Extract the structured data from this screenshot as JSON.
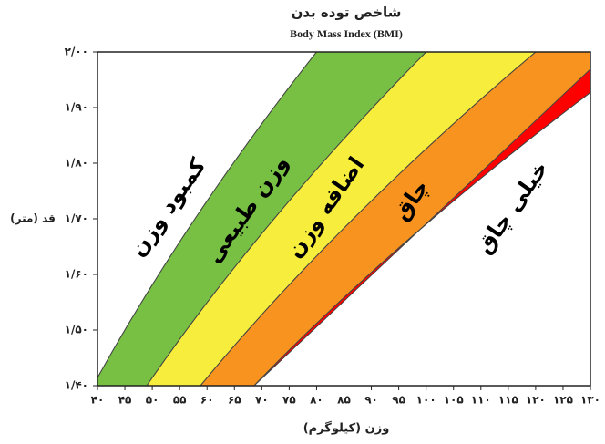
{
  "chart_data": {
    "type": "bmi-zones",
    "title": "شاخص توده بدن",
    "subtitle": "Body Mass Index (BMI)",
    "x_label": "وزن (کیلوگرم)",
    "y_label": "قد (متر)",
    "zones": [
      {
        "name": "کمبود وزن",
        "color": "#ffffff"
      },
      {
        "name": "وزن طبیعی",
        "color": "#77c043"
      },
      {
        "name": "اضافه وزن",
        "color": "#f7ed3c"
      },
      {
        "name": "چاق",
        "color": "#f7931e"
      },
      {
        "name": "خیلی چاق",
        "color": "#ff0000"
      }
    ],
    "boundaries": [
      20,
      25,
      30,
      35
    ],
    "xlim": [
      40,
      130
    ],
    "ylim": [
      1.4,
      2.0
    ],
    "xticks": [
      {
        "value": 40,
        "label": "۴۰"
      },
      {
        "value": 45,
        "label": "۴۵"
      },
      {
        "value": 50,
        "label": "۵۰"
      },
      {
        "value": 55,
        "label": "۵۵"
      },
      {
        "value": 60,
        "label": "۶۰"
      },
      {
        "value": 65,
        "label": "۶۵"
      },
      {
        "value": 70,
        "label": "۷۰"
      },
      {
        "value": 75,
        "label": "۷۵"
      },
      {
        "value": 80,
        "label": "۸۰"
      },
      {
        "value": 85,
        "label": "۸۵"
      },
      {
        "value": 90,
        "label": "۹۰"
      },
      {
        "value": 95,
        "label": "۹۵"
      },
      {
        "value": 100,
        "label": "۱۰۰"
      },
      {
        "value": 105,
        "label": "۱۰۵"
      },
      {
        "value": 110,
        "label": "۱۱۰"
      },
      {
        "value": 115,
        "label": "۱۱۵"
      },
      {
        "value": 120,
        "label": "۱۲۰"
      },
      {
        "value": 125,
        "label": "۱۲۵"
      },
      {
        "value": 130,
        "label": "۱۳۰"
      }
    ],
    "yticks": [
      {
        "value": 1.4,
        "label": "۱/۴۰"
      },
      {
        "value": 1.5,
        "label": "۱/۵۰"
      },
      {
        "value": 1.6,
        "label": "۱/۶۰"
      },
      {
        "value": 1.7,
        "label": "۱/۷۰"
      },
      {
        "value": 1.8,
        "label": "۱/۸۰"
      },
      {
        "value": 1.9,
        "label": "۱/۹۰"
      },
      {
        "value": 2.0,
        "label": "۲/۰۰"
      }
    ]
  }
}
